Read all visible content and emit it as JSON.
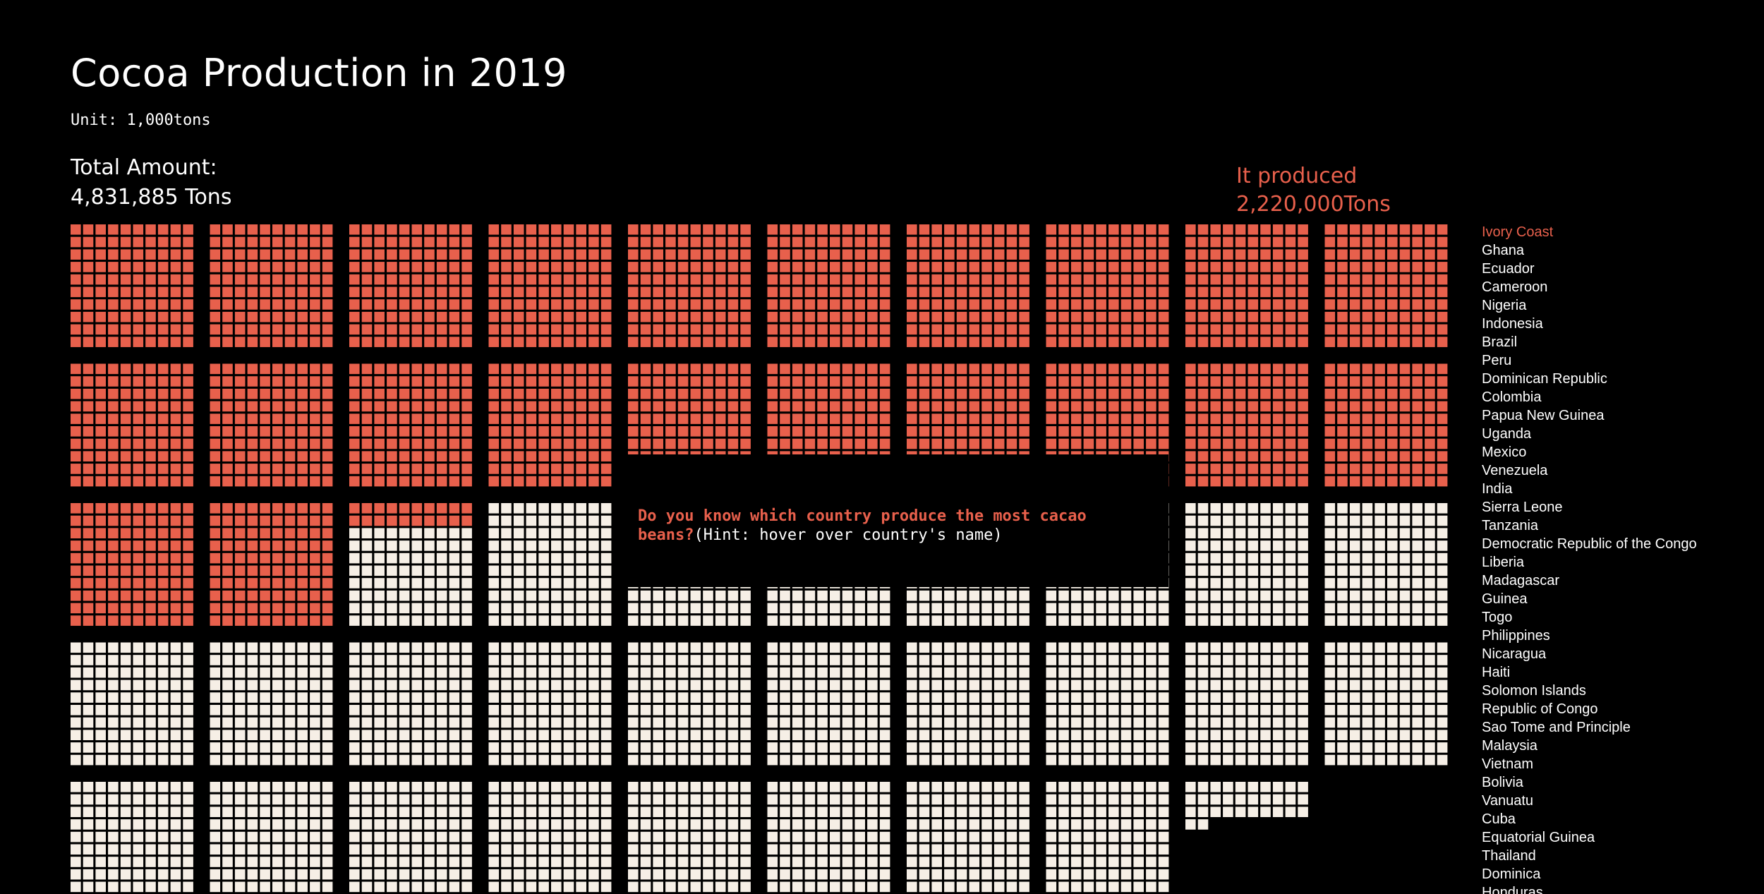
{
  "page": {
    "title": "Cocoa Production in 2019",
    "unit": "Unit: 1,000tons",
    "total_label": "Total Amount:",
    "total_value": "4,831,885 Tons",
    "produced_label": "It produced",
    "produced_value": "2,220,000Tons"
  },
  "hint": {
    "question": "Do you know which country produce the most cacao beans?",
    "hint": "(Hint: hover over country's name)"
  },
  "colors": {
    "background": "#000000",
    "highlight": "#e8604c",
    "cell": "#f6efe6",
    "text": "#ffffff"
  },
  "chart_data": {
    "type": "waffle",
    "title": "Cocoa Production in 2019",
    "unit": "1,000tons",
    "total": 4831885,
    "highlighted": {
      "country": "Ivory Coast",
      "value": 2220000
    },
    "cell_value": 1000,
    "cells_per_block": 100,
    "grid": "10x10 cells per block, 10 blocks per row",
    "countries": [
      "Ivory Coast",
      "Ghana",
      "Ecuador",
      "Cameroon",
      "Nigeria",
      "Indonesia",
      "Brazil",
      "Peru",
      "Dominican Republic",
      "Colombia",
      "Papua New Guinea",
      "Uganda",
      "Mexico",
      "Venezuela",
      "India",
      "Sierra Leone",
      "Tanzania",
      "Democratic Republic of the Congo",
      "Liberia",
      "Madagascar",
      "Guinea",
      "Togo",
      "Philippines",
      "Nicaragua",
      "Haiti",
      "Solomon Islands",
      "Republic of Congo",
      "Sao Tome and Principle",
      "Malaysia",
      "Vietnam",
      "Bolivia",
      "Vanuatu",
      "Cuba",
      "Equatorial Guinea",
      "Thailand",
      "Dominica",
      "Honduras"
    ]
  }
}
